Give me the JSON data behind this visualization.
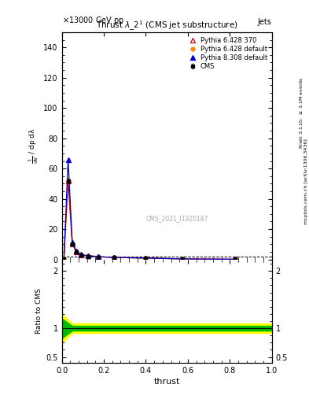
{
  "title": "Thrust $\\lambda\\_2^1$ (CMS jet substructure)",
  "header_left": "$\\times$13000 GeV pp",
  "header_right": "Jets",
  "watermark": "CMS_2021_I1920187",
  "xlabel": "thrust",
  "right_label_top": "Rivet 3.1.10, $\\geq$ 3.1M events",
  "right_label_bottom": "mcplots.cern.ch [arXiv:1306.3436]",
  "xlim": [
    0,
    1
  ],
  "ylim_main": [
    0,
    150
  ],
  "ylim_ratio": [
    0.4,
    2.2
  ],
  "yticks_main": [
    0,
    20,
    40,
    60,
    80,
    100,
    120,
    140
  ],
  "yticks_ratio": [
    0.5,
    1.0,
    2.0
  ],
  "x_centers": [
    0.01,
    0.03,
    0.05,
    0.07,
    0.09,
    0.125,
    0.175,
    0.25,
    0.4,
    0.575,
    0.825
  ],
  "cms_y": [
    0.5,
    52.0,
    10.0,
    5.0,
    3.0,
    2.0,
    1.5,
    1.2,
    0.8,
    0.3,
    0.1
  ],
  "cms_yerr": [
    0.05,
    2.0,
    0.5,
    0.3,
    0.2,
    0.15,
    0.1,
    0.08,
    0.06,
    0.02,
    0.01
  ],
  "p6_370_y": [
    0.5,
    52.0,
    10.0,
    5.0,
    3.0,
    2.5,
    1.8,
    1.3,
    0.9,
    0.35,
    0.12
  ],
  "p6_def_y": [
    0.5,
    52.0,
    10.0,
    5.0,
    3.0,
    2.5,
    1.8,
    1.3,
    0.9,
    0.35,
    0.12
  ],
  "p8_def_y": [
    0.5,
    66.0,
    11.0,
    5.5,
    3.2,
    2.5,
    1.8,
    1.3,
    0.9,
    0.35,
    0.12
  ],
  "cms_color": "#000000",
  "p6_370_color": "#cc0000",
  "p6_def_color": "#ff8800",
  "p8_def_color": "#0000cc",
  "ratio_band_yellow": "#ffff00",
  "ratio_band_green": "#00bb00",
  "ratio_line_color": "#000000",
  "dashed_line_y": 2.0,
  "bg_color": "#ffffff"
}
